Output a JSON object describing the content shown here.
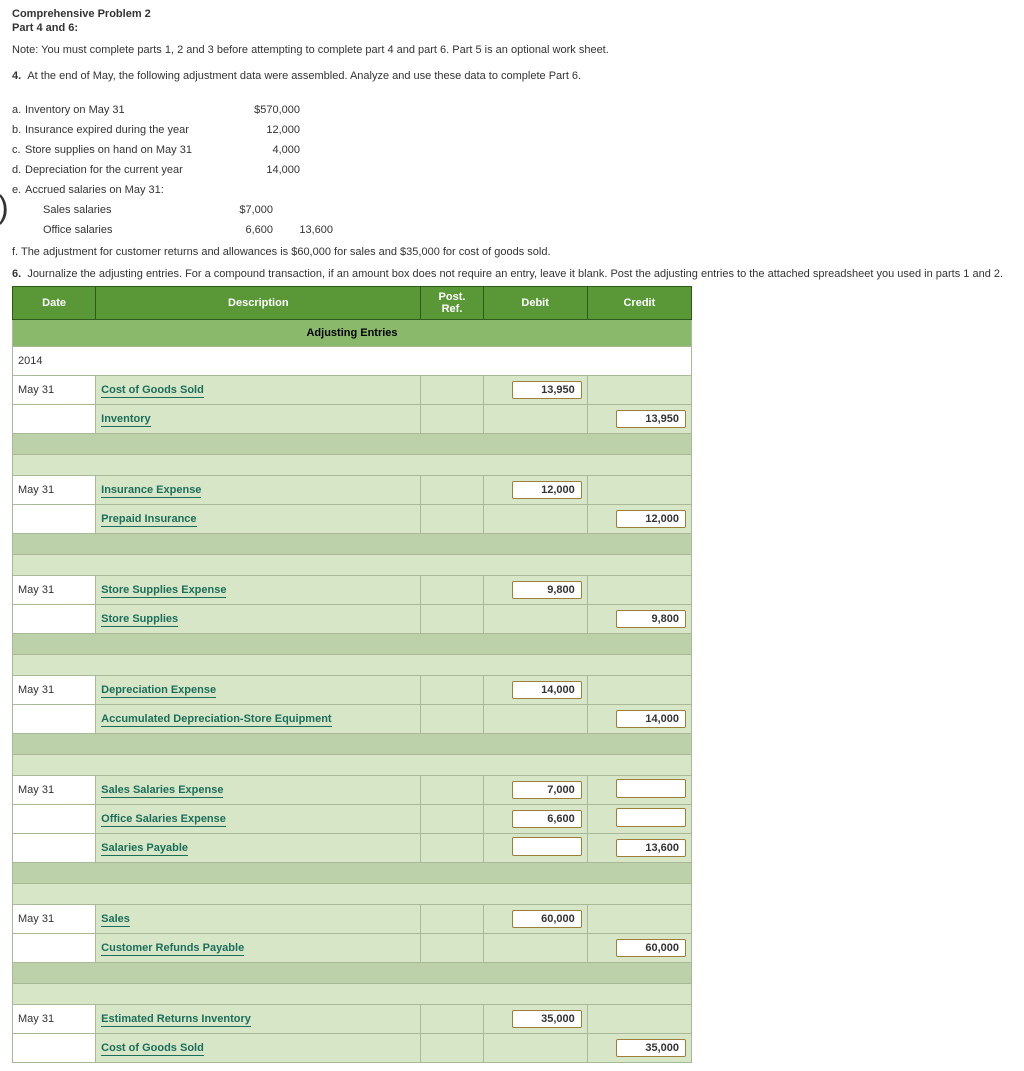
{
  "header": {
    "title": "Comprehensive Problem 2",
    "subtitle": "Part 4 and 6:",
    "note": "Note: You must complete parts 1, 2 and 3 before attempting to complete part 4 and part 6. Part 5 is an optional work sheet.",
    "q4": "4.  At the end of May, the following adjustment data were assembled. Analyze and use these data to complete Part 6."
  },
  "adjustments": {
    "a": {
      "label": "a.",
      "text": "Inventory on May 31",
      "amount": "$570,000"
    },
    "b": {
      "label": "b.",
      "text": "Insurance expired during the year",
      "amount": "12,000"
    },
    "c": {
      "label": "c.",
      "text": "Store supplies on hand on May 31",
      "amount": "4,000"
    },
    "d": {
      "label": "d.",
      "text": "Depreciation for the current year",
      "amount": "14,000"
    },
    "e": {
      "label": "e.",
      "text": "Accrued salaries on May 31:"
    },
    "e1": {
      "text": "Sales salaries",
      "amt1": "$7,000"
    },
    "e2": {
      "text": "Office salaries",
      "amt1": "6,600",
      "amt2": "13,600"
    },
    "f": "f. The adjustment for customer returns and allowances is $60,000 for sales and $35,000 for cost of goods sold."
  },
  "q6": "6.  Journalize the adjusting entries. For a compound transaction, if an amount box does not require an entry, leave it blank. Post the adjusting entries to the attached spreadsheet you used in parts 1 and 2.",
  "tbl": {
    "head": {
      "date": "Date",
      "desc": "Description",
      "ref": "Post.\nRef.",
      "debit": "Debit",
      "credit": "Credit"
    },
    "section": "Adjusting Entries",
    "year": "2014",
    "entries": [
      {
        "date": "May 31",
        "lines": [
          {
            "acct": "Cost of Goods Sold",
            "debit": "13,950",
            "credit": ""
          },
          {
            "acct": "Inventory",
            "indent": true,
            "debit": "",
            "credit": "13,950"
          }
        ]
      },
      {
        "date": "May 31",
        "lines": [
          {
            "acct": "Insurance Expense",
            "debit": "12,000",
            "credit": ""
          },
          {
            "acct": "Prepaid Insurance",
            "indent": true,
            "debit": "",
            "credit": "12,000"
          }
        ]
      },
      {
        "date": "May 31",
        "lines": [
          {
            "acct": "Store Supplies Expense",
            "debit": "9,800",
            "credit": ""
          },
          {
            "acct": "Store Supplies",
            "indent": true,
            "debit": "",
            "credit": "9,800"
          }
        ]
      },
      {
        "date": "May 31",
        "lines": [
          {
            "acct": "Depreciation Expense",
            "debit": "14,000",
            "credit": ""
          },
          {
            "acct": "Accumulated Depreciation-Store Equipment",
            "indent": true,
            "debit": "",
            "credit": "14,000"
          }
        ]
      },
      {
        "date": "May 31",
        "lines": [
          {
            "acct": "Sales Salaries Expense",
            "debit": "7,000",
            "credit": "empty"
          },
          {
            "acct": "Office Salaries Expense",
            "indent": true,
            "debit": "6,600",
            "credit": "empty"
          },
          {
            "acct": "Salaries Payable",
            "indent": true,
            "debit": "empty",
            "credit": "13,600"
          }
        ]
      },
      {
        "date": "May 31",
        "lines": [
          {
            "acct": "Sales",
            "debit": "60,000",
            "credit": ""
          },
          {
            "acct": "Customer Refunds Payable",
            "indent": true,
            "debit": "",
            "credit": "60,000"
          }
        ]
      },
      {
        "date": "May 31",
        "lines": [
          {
            "acct": "Estimated Returns Inventory",
            "debit": "35,000",
            "credit": ""
          },
          {
            "acct": "Cost of Goods Sold",
            "indent": true,
            "debit": "",
            "credit": "35,000"
          }
        ]
      }
    ]
  }
}
